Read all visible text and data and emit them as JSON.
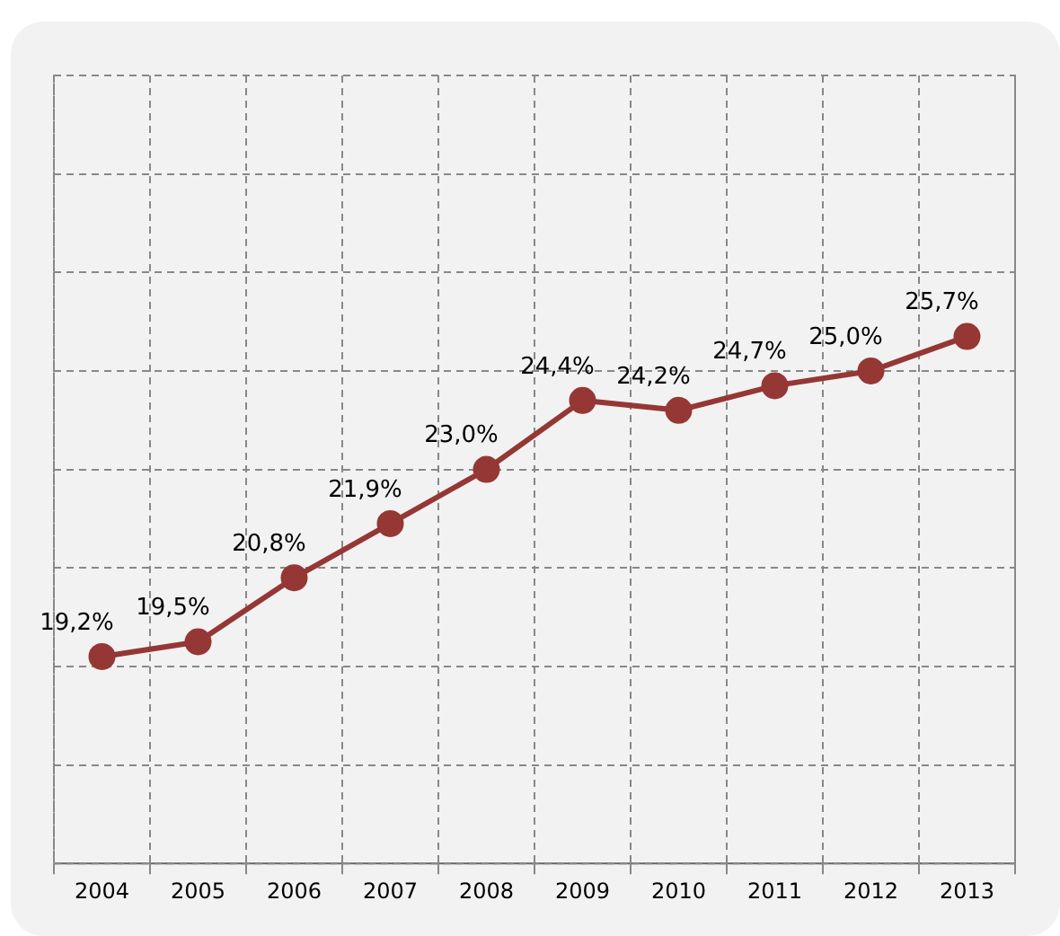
{
  "chart_data": {
    "type": "line",
    "categories": [
      "2004",
      "2005",
      "2006",
      "2007",
      "2008",
      "2009",
      "2010",
      "2011",
      "2012",
      "2013"
    ],
    "series": [
      {
        "color": "#953735",
        "values": [
          19.2,
          19.5,
          20.8,
          21.9,
          23.0,
          24.4,
          24.2,
          24.7,
          25.0,
          25.7
        ],
        "value_labels": [
          "19,2%",
          "19,5%",
          "20,8%",
          "21,9%",
          "23,0%",
          "24,4%",
          "24,2%",
          "24,7%",
          "25,0%",
          "25,7%"
        ]
      }
    ],
    "ylim": [
      15,
      31
    ],
    "yticks": [
      {
        "value": 15,
        "label": null
      },
      {
        "value": 17,
        "label": null
      },
      {
        "value": 19,
        "label": null
      },
      {
        "value": 21,
        "label": null
      },
      {
        "value": 23,
        "label": null
      },
      {
        "value": 25,
        "label": null
      },
      {
        "value": 27,
        "label": null
      },
      {
        "value": 29,
        "label": null
      },
      {
        "value": 31,
        "label": null
      }
    ],
    "grid": true,
    "tick_labels": "x",
    "marker": "circle",
    "line_style": "solid",
    "legend": false
  }
}
